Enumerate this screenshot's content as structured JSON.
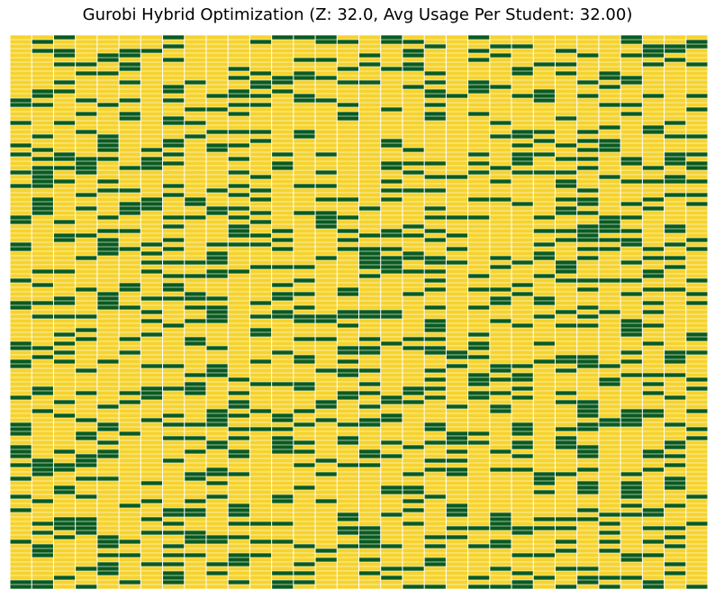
{
  "chart_data": {
    "type": "heatmap",
    "title": "Gurobi Hybrid Optimization (Z: 32.0, Avg Usage Per Student: 32.00)",
    "xlabel": "",
    "ylabel": "",
    "columns": 32,
    "rows": 123,
    "grid_lines": true,
    "axes_visible": false,
    "colors": {
      "value_0": "#f6d32d",
      "value_1": "#0b5a1f",
      "grid": "#ffffff",
      "background": "#ffffff"
    },
    "value_pattern": "binary assignment matrix (0 = not used, 1 = used); per-cell values not individually legible"
  }
}
